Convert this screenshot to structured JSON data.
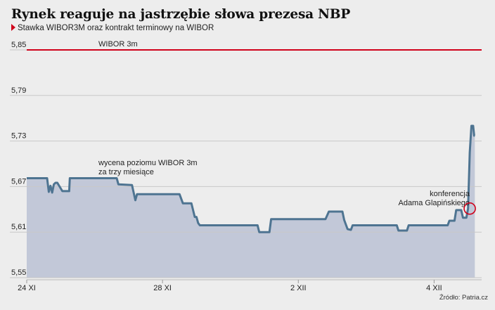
{
  "title": "Rynek reaguje na jastrzębie słowa prezesa NBP",
  "subtitle": "Stawka WIBOR3M oraz kontrakt terminowy na WIBOR",
  "source": "Źródło: Patria.cz",
  "colors": {
    "background": "#ededed",
    "area_fill": "#c2c8d8",
    "line": "#4e7491",
    "wibor": "#d0021b",
    "grid": "#c8c8c8",
    "marker": "#d0021b"
  },
  "chart_data": {
    "type": "area",
    "ylim": [
      5.55,
      5.85
    ],
    "y_ticks": [
      "5,55",
      "5,61",
      "5,67",
      "5,73",
      "5,79",
      "5,85"
    ],
    "y_tick_values": [
      5.55,
      5.61,
      5.67,
      5.73,
      5.79,
      5.85
    ],
    "x_ticks": [
      "24 XI",
      "28 XI",
      "2 XII",
      "4 XII"
    ],
    "x_tick_positions": [
      0,
      4,
      8,
      12
    ],
    "x_range": [
      0,
      13.4
    ],
    "grid": "horizontal",
    "series": [
      {
        "name": "WIBOR 3m",
        "type": "line",
        "x": [
          0,
          13.4
        ],
        "values": [
          5.85,
          5.85
        ]
      },
      {
        "name": "wycena poziomu WIBOR 3m za trzy miesiące",
        "type": "area",
        "x": [
          0.0,
          0.6,
          0.65,
          0.7,
          0.75,
          0.8,
          0.85,
          0.9,
          1.05,
          1.1,
          1.25,
          1.27,
          1.4,
          1.45,
          1.55,
          1.58,
          2.65,
          2.7,
          3.1,
          3.2,
          3.25,
          3.35,
          3.4,
          4.5,
          4.6,
          4.85,
          4.95,
          5.0,
          5.05,
          5.1,
          5.3,
          6.8,
          6.85,
          7.15,
          7.2,
          7.45,
          7.5,
          8.8,
          8.9,
          9.3,
          9.35,
          9.45,
          9.55,
          9.6,
          10.9,
          10.95,
          11.2,
          11.25,
          12.4,
          12.45,
          12.6,
          12.65,
          12.8,
          12.85,
          12.95,
          13.0,
          13.05,
          13.1,
          13.15,
          13.18,
          13.2
        ],
        "values": [
          5.681,
          5.681,
          5.663,
          5.671,
          5.662,
          5.673,
          5.675,
          5.675,
          5.664,
          5.664,
          5.664,
          5.681,
          5.681,
          5.681,
          5.681,
          5.681,
          5.681,
          5.673,
          5.672,
          5.652,
          5.66,
          5.66,
          5.66,
          5.66,
          5.648,
          5.648,
          5.63,
          5.63,
          5.622,
          5.619,
          5.619,
          5.619,
          5.61,
          5.61,
          5.627,
          5.627,
          5.627,
          5.627,
          5.637,
          5.637,
          5.626,
          5.614,
          5.613,
          5.619,
          5.619,
          5.612,
          5.612,
          5.619,
          5.619,
          5.625,
          5.625,
          5.639,
          5.639,
          5.629,
          5.629,
          5.641,
          5.715,
          5.75,
          5.75,
          5.737,
          5.737
        ]
      }
    ],
    "annotations": [
      {
        "text": [
          "wycena poziomu WIBOR 3m",
          "za trzy miesiące"
        ]
      },
      {
        "text": [
          "konferencja",
          "Adama Glapińskiego"
        ]
      }
    ]
  }
}
